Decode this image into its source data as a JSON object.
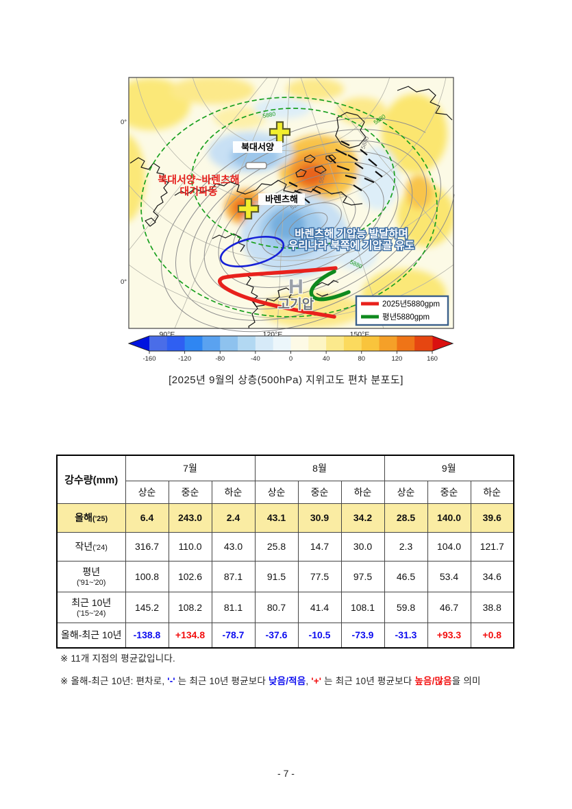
{
  "colors": {
    "accent_red": "#e5201d",
    "accent_blue": "#0b0bef",
    "diff_neg": "#0b0bef",
    "diff_pos": "#f20d0d",
    "line_2025": "#e8211c",
    "line_normal": "#0f8a1e",
    "highlight_row": "#faeca3"
  },
  "map": {
    "labels": {
      "north_atlantic": "북대서양",
      "barents": "바렌츠해",
      "wave_line1": "북대서양~바렌츠해",
      "wave_line2": "대기파동",
      "ridge_line1": "바렌츠해 기압능 발달하며",
      "ridge_line2": "우리나라 북쪽에 기압골 유도",
      "high_symbol": "H",
      "high_label": "고기압",
      "plus": "+",
      "minus": "−"
    },
    "legend": [
      {
        "color": "#e8211c",
        "label": "2025년5880gpm"
      },
      {
        "color": "#0f8a1e",
        "label": "평년5880gpm"
      }
    ],
    "axis": {
      "x_ticks": [
        "90°E",
        "120°E",
        "150°E"
      ],
      "y_ticks": [
        "0°",
        "0°"
      ]
    },
    "contour_labels": {
      "green": [
        "5880",
        "5880",
        "5880"
      ],
      "gray": [
        "5520",
        "5280",
        "5880"
      ]
    },
    "colorbar": {
      "ticks": [
        "-160",
        "-120",
        "-80",
        "-40",
        "0",
        "40",
        "80",
        "120",
        "160"
      ],
      "arrow_left": "#0013e0",
      "arrow_right": "#da1110",
      "colors": [
        "#4a6de8",
        "#2f5ff2",
        "#2f86f2",
        "#5aa2f0",
        "#8ec2ee",
        "#b2d8f2",
        "#d6eaf8",
        "#ecf6fb",
        "#fdfae6",
        "#fdf5c4",
        "#fbe98c",
        "#fbda5e",
        "#f9c43c",
        "#f5a028",
        "#ef7417",
        "#e64611"
      ]
    }
  },
  "caption": "[2025년 9월의 상층(500hPa) 지위고도 편차 분포도]",
  "table": {
    "corner_label": "강수량(mm)",
    "months": [
      "7월",
      "8월",
      "9월"
    ],
    "periods": [
      "상순",
      "중순",
      "하순"
    ],
    "rows": [
      {
        "main": "올해",
        "sub": "('25)",
        "inline": true,
        "highlight": true,
        "diff": false,
        "values": [
          "6.4",
          "243.0",
          "2.4",
          "43.1",
          "30.9",
          "34.2",
          "28.5",
          "140.0",
          "39.6"
        ]
      },
      {
        "main": "작년",
        "sub": "('24)",
        "inline": true,
        "highlight": false,
        "diff": false,
        "values": [
          "316.7",
          "110.0",
          "43.0",
          "25.8",
          "14.7",
          "30.0",
          "2.3",
          "104.0",
          "121.7"
        ]
      },
      {
        "main": "평년",
        "sub": "('91~'20)",
        "inline": false,
        "highlight": false,
        "diff": false,
        "values": [
          "100.8",
          "102.6",
          "87.1",
          "91.5",
          "77.5",
          "97.5",
          "46.5",
          "53.4",
          "34.6"
        ]
      },
      {
        "main": "최근 10년",
        "sub": "('15~'24)",
        "inline": false,
        "highlight": false,
        "diff": false,
        "values": [
          "145.2",
          "108.2",
          "81.1",
          "80.7",
          "41.4",
          "108.1",
          "59.8",
          "46.7",
          "38.8"
        ]
      },
      {
        "main": "올해-최근 10년",
        "sub": "",
        "inline": true,
        "highlight": false,
        "diff": true,
        "values": [
          "-138.8",
          "+134.8",
          "-78.7",
          "-37.6",
          "-10.5",
          "-73.9",
          "-31.3",
          "+93.3",
          "+0.8"
        ]
      }
    ]
  },
  "notes": [
    {
      "segments": [
        {
          "t": "※  11개 지점의 평균값입니다.",
          "c": "#222"
        }
      ]
    },
    {
      "segments": [
        {
          "t": "※  올해-최근 10년: 편차로,  ",
          "c": "#222"
        },
        {
          "t": "'-'",
          "c": "#0b0bef"
        },
        {
          "t": " 는 최근 10년 평균보다 ",
          "c": "#222"
        },
        {
          "t": "낮음/적음",
          "c": "#0b0bef"
        },
        {
          "t": ",   ",
          "c": "#222"
        },
        {
          "t": "'+'",
          "c": "#f20d0d"
        },
        {
          "t": " 는 최근 10년 평균보다 ",
          "c": "#222"
        },
        {
          "t": "높음/많음",
          "c": "#f20d0d"
        },
        {
          "t": "을 의미",
          "c": "#222"
        }
      ]
    }
  ],
  "page_number": "- 7 -"
}
